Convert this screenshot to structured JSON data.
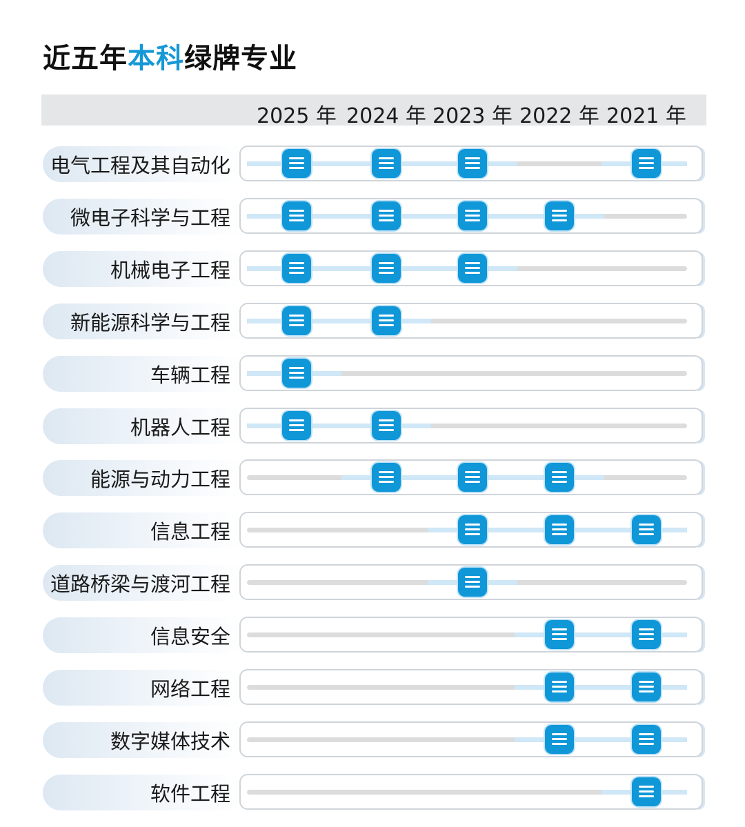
{
  "title": {
    "prefix": "近五年",
    "highlight": "本科",
    "suffix": "绿牌专业"
  },
  "colors": {
    "accent": "#0f97d8",
    "track": "#dcdcdc",
    "track_active": "#cfe7f6",
    "header_bg": "#e4e6e8"
  },
  "icon": "list-badge-icon",
  "chart_data": {
    "type": "table",
    "years": [
      "2025 年",
      "2024 年",
      "2023 年",
      "2022 年",
      "2021 年"
    ],
    "rows": [
      {
        "major": "电气工程及其自动化",
        "flags": [
          1,
          1,
          1,
          0,
          1
        ]
      },
      {
        "major": "微电子科学与工程",
        "flags": [
          1,
          1,
          1,
          1,
          0
        ]
      },
      {
        "major": "机械电子工程",
        "flags": [
          1,
          1,
          1,
          0,
          0
        ]
      },
      {
        "major": "新能源科学与工程",
        "flags": [
          1,
          1,
          0,
          0,
          0
        ]
      },
      {
        "major": "车辆工程",
        "flags": [
          1,
          0,
          0,
          0,
          0
        ]
      },
      {
        "major": "机器人工程",
        "flags": [
          1,
          1,
          0,
          0,
          0
        ]
      },
      {
        "major": "能源与动力工程",
        "flags": [
          0,
          1,
          1,
          1,
          0
        ]
      },
      {
        "major": "信息工程",
        "flags": [
          0,
          0,
          1,
          1,
          1
        ]
      },
      {
        "major": "道路桥梁与渡河工程",
        "flags": [
          0,
          0,
          1,
          0,
          0
        ]
      },
      {
        "major": "信息安全",
        "flags": [
          0,
          0,
          0,
          1,
          1
        ]
      },
      {
        "major": "网络工程",
        "flags": [
          0,
          0,
          0,
          1,
          1
        ]
      },
      {
        "major": "数字媒体技术",
        "flags": [
          0,
          0,
          0,
          1,
          1
        ]
      },
      {
        "major": "软件工程",
        "flags": [
          0,
          0,
          0,
          0,
          1
        ]
      }
    ]
  }
}
